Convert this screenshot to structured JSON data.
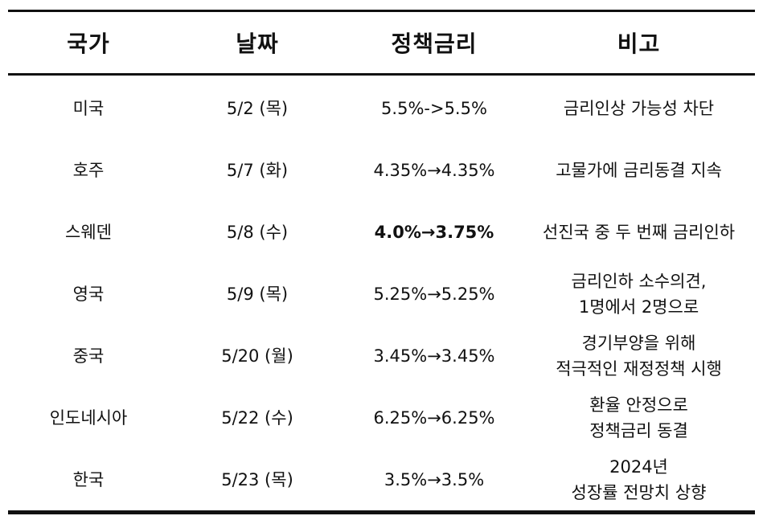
{
  "headers": [
    "국가",
    "날짜",
    "정책금리",
    "비고"
  ],
  "rows": [
    {
      "country": "미국",
      "date": "5/2 (목)",
      "rate": "5.5%->5.5%",
      "note": [
        "금리인상 가능성 차단"
      ],
      "bold_rate": false
    },
    {
      "country": "호주",
      "date": "5/7 (화)",
      "rate": "4.35%→4.35%",
      "note": [
        "고물가에 금리동결 지속"
      ],
      "bold_rate": false
    },
    {
      "country": "스웨덴",
      "date": "5/8 (수)",
      "rate": "4.0%→3.75%",
      "note": [
        "선진국 중 두 번째 금리인하"
      ],
      "bold_rate": true
    },
    {
      "country": "영국",
      "date": "5/9 (목)",
      "rate": "5.25%→5.25%",
      "note": [
        "금리인하 소수의견,",
        "1명에서 2명으로"
      ],
      "bold_rate": false
    },
    {
      "country": "중국",
      "date": "5/20 (월)",
      "rate": "3.45%→3.45%",
      "note": [
        "경기부양을 위해",
        "적극적인 재정정책 시행"
      ],
      "bold_rate": false
    },
    {
      "country": "인도네시아",
      "date": "5/22 (수)",
      "rate": "6.25%→6.25%",
      "note": [
        "환율 안정으로",
        "정책금리 동결"
      ],
      "bold_rate": false
    },
    {
      "country": "한국",
      "date": "5/23 (목)",
      "rate": "3.5%→3.5%",
      "note": [
        "2024년",
        "성장률 전망치 상향"
      ],
      "bold_rate": false
    }
  ]
}
